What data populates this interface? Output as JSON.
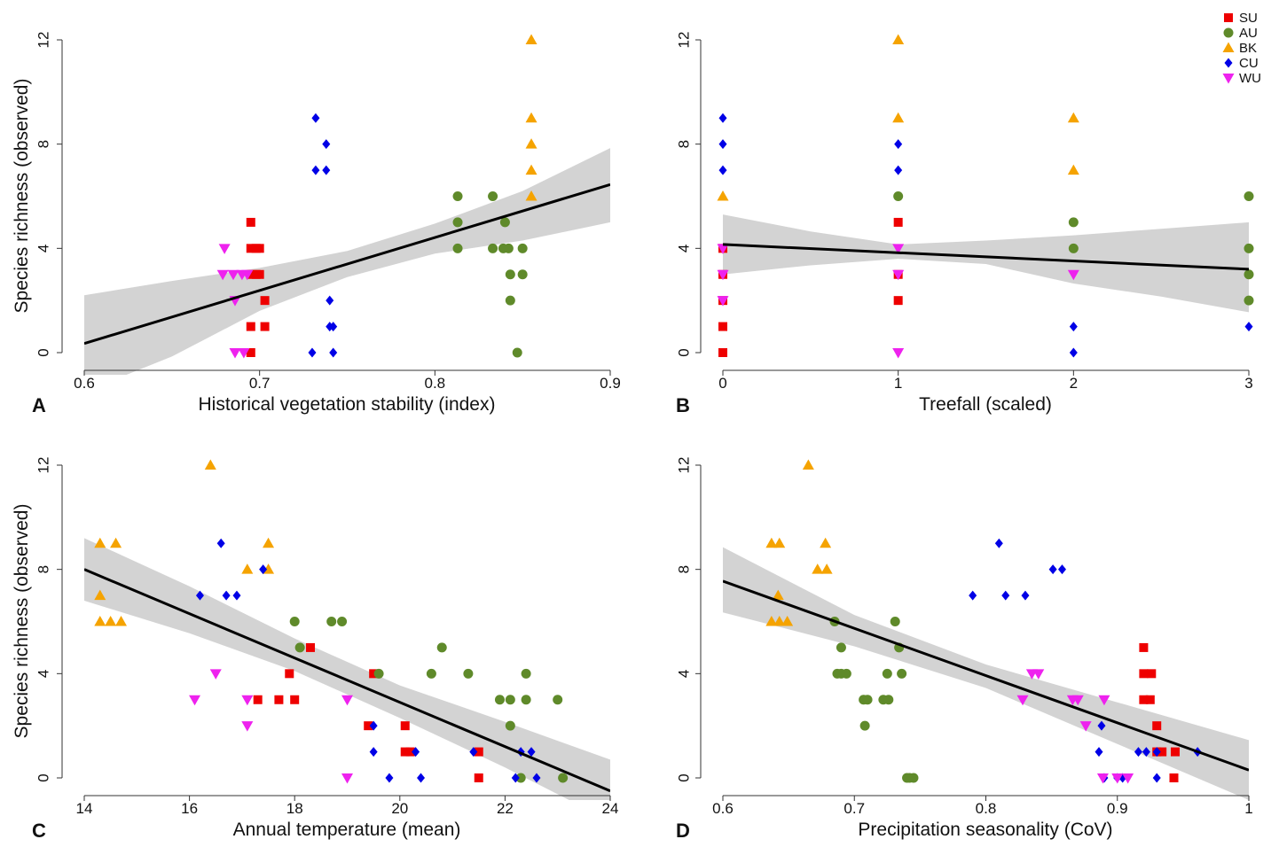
{
  "colors": {
    "SU": "#ee0000",
    "AU": "#5f8a2a",
    "BK": "#f5a300",
    "CU": "#0000e6",
    "WU": "#ee22ee",
    "ci_band": "#d3d3d3",
    "fit_line": "#000000"
  },
  "legend": {
    "placement": "top-right",
    "entries": [
      {
        "key": "SU",
        "label": "SU",
        "marker": "square"
      },
      {
        "key": "AU",
        "label": "AU",
        "marker": "circle"
      },
      {
        "key": "BK",
        "label": "BK",
        "marker": "triangle-up"
      },
      {
        "key": "CU",
        "label": "CU",
        "marker": "diamond"
      },
      {
        "key": "WU",
        "label": "WU",
        "marker": "triangle-down"
      }
    ]
  },
  "chart_data": [
    {
      "panel": "A",
      "type": "scatter",
      "xlabel": "Historical vegetation stability (index)",
      "ylabel": "Species richness (observed)",
      "xlim": [
        0.6,
        0.9
      ],
      "ylim": [
        0,
        12
      ],
      "xticks": [
        0.6,
        0.7,
        0.8,
        0.9
      ],
      "xtick_labels": [
        "0.6",
        "0.7",
        "0.8",
        "0.9"
      ],
      "yticks": [
        0,
        4,
        8,
        12
      ],
      "ytick_labels": [
        "0",
        "4",
        "8",
        "12"
      ],
      "fit": {
        "x": [
          0.6,
          0.9
        ],
        "y": [
          0.35,
          6.45
        ]
      },
      "ci": {
        "x": [
          0.6,
          0.65,
          0.7,
          0.75,
          0.8,
          0.85,
          0.9
        ],
        "upper": [
          2.2,
          2.75,
          3.25,
          3.9,
          4.95,
          6.2,
          7.85
        ],
        "lower": [
          -1.5,
          -0.15,
          1.6,
          2.9,
          3.8,
          4.3,
          5.0
        ]
      },
      "series": [
        {
          "key": "SU",
          "points": [
            [
              0.695,
              5
            ],
            [
              0.695,
              4
            ],
            [
              0.698,
              4
            ],
            [
              0.7,
              4
            ],
            [
              0.695,
              3
            ],
            [
              0.698,
              3
            ],
            [
              0.7,
              3
            ],
            [
              0.703,
              2
            ],
            [
              0.695,
              1
            ],
            [
              0.703,
              1
            ],
            [
              0.695,
              0
            ]
          ]
        },
        {
          "key": "AU",
          "points": [
            [
              0.813,
              6
            ],
            [
              0.833,
              6
            ],
            [
              0.813,
              5
            ],
            [
              0.84,
              5
            ],
            [
              0.813,
              4
            ],
            [
              0.833,
              4
            ],
            [
              0.839,
              4
            ],
            [
              0.842,
              4
            ],
            [
              0.85,
              4
            ],
            [
              0.843,
              3
            ],
            [
              0.85,
              3
            ],
            [
              0.843,
              2
            ],
            [
              0.847,
              0
            ]
          ]
        },
        {
          "key": "BK",
          "points": [
            [
              0.855,
              12
            ],
            [
              0.855,
              9
            ],
            [
              0.855,
              8
            ],
            [
              0.855,
              7
            ],
            [
              0.855,
              6
            ]
          ]
        },
        {
          "key": "CU",
          "points": [
            [
              0.732,
              9
            ],
            [
              0.738,
              8
            ],
            [
              0.732,
              7
            ],
            [
              0.738,
              7
            ],
            [
              0.74,
              2
            ],
            [
              0.74,
              1
            ],
            [
              0.742,
              1
            ],
            [
              0.73,
              0
            ],
            [
              0.742,
              0
            ]
          ]
        },
        {
          "key": "WU",
          "points": [
            [
              0.68,
              4
            ],
            [
              0.679,
              3
            ],
            [
              0.685,
              3
            ],
            [
              0.69,
              3
            ],
            [
              0.693,
              3
            ],
            [
              0.686,
              2
            ],
            [
              0.686,
              0
            ],
            [
              0.691,
              0
            ]
          ]
        }
      ]
    },
    {
      "panel": "B",
      "type": "scatter",
      "xlabel": "Treefall (scaled)",
      "ylabel": "",
      "xlim": [
        0,
        3
      ],
      "ylim": [
        0,
        12
      ],
      "xticks": [
        0,
        1,
        2,
        3
      ],
      "xtick_labels": [
        "0",
        "1",
        "2",
        "3"
      ],
      "yticks": [
        0,
        4,
        8,
        12
      ],
      "ytick_labels": [
        "0",
        "4",
        "8",
        "12"
      ],
      "fit": {
        "x": [
          0,
          3
        ],
        "y": [
          4.15,
          3.2
        ]
      },
      "ci": {
        "x": [
          0,
          0.5,
          1,
          1.5,
          2,
          2.5,
          3
        ],
        "upper": [
          5.3,
          4.65,
          4.15,
          4.3,
          4.5,
          4.75,
          5.0
        ],
        "lower": [
          3.0,
          3.35,
          3.6,
          3.4,
          2.65,
          2.15,
          1.55
        ]
      },
      "series": [
        {
          "key": "SU",
          "points": [
            [
              0,
              4
            ],
            [
              0,
              3
            ],
            [
              0,
              2
            ],
            [
              0,
              1
            ],
            [
              0,
              0
            ],
            [
              1,
              5
            ],
            [
              1,
              3
            ],
            [
              1,
              2
            ]
          ]
        },
        {
          "key": "AU",
          "points": [
            [
              1,
              6
            ],
            [
              2,
              5
            ],
            [
              2,
              4
            ],
            [
              3,
              6
            ],
            [
              3,
              4
            ],
            [
              3,
              3
            ],
            [
              3,
              2
            ]
          ]
        },
        {
          "key": "BK",
          "points": [
            [
              0,
              6
            ],
            [
              1,
              12
            ],
            [
              1,
              9
            ],
            [
              2,
              9
            ],
            [
              2,
              7
            ]
          ]
        },
        {
          "key": "CU",
          "points": [
            [
              0,
              9
            ],
            [
              0,
              8
            ],
            [
              0,
              7
            ],
            [
              1,
              8
            ],
            [
              1,
              7
            ],
            [
              2,
              1
            ],
            [
              2,
              0
            ],
            [
              3,
              1
            ]
          ]
        },
        {
          "key": "WU",
          "points": [
            [
              0,
              4
            ],
            [
              0,
              3
            ],
            [
              0,
              2
            ],
            [
              1,
              4
            ],
            [
              1,
              3
            ],
            [
              1,
              0
            ],
            [
              2,
              3
            ]
          ]
        }
      ]
    },
    {
      "panel": "C",
      "type": "scatter",
      "xlabel": "Annual temperature (mean)",
      "ylabel": "Species richness (observed)",
      "xlim": [
        14,
        24
      ],
      "ylim": [
        0,
        12
      ],
      "xticks": [
        14,
        16,
        18,
        20,
        22,
        24
      ],
      "xtick_labels": [
        "14",
        "16",
        "18",
        "20",
        "22",
        "24"
      ],
      "yticks": [
        0,
        4,
        8,
        12
      ],
      "ytick_labels": [
        "0",
        "4",
        "8",
        "12"
      ],
      "fit": {
        "x": [
          14,
          24
        ],
        "y": [
          8.0,
          -0.5
        ]
      },
      "ci": {
        "x": [
          14,
          16,
          18,
          20,
          22,
          24
        ],
        "upper": [
          9.2,
          7.35,
          5.35,
          3.55,
          2.15,
          0.7
        ],
        "lower": [
          6.8,
          5.55,
          4.1,
          2.3,
          0.4,
          -1.65
        ]
      },
      "series": [
        {
          "key": "SU",
          "points": [
            [
              18.3,
              5
            ],
            [
              17.9,
              4
            ],
            [
              19.5,
              4
            ],
            [
              17.3,
              3
            ],
            [
              17.7,
              3
            ],
            [
              18.0,
              3
            ],
            [
              19.4,
              2
            ],
            [
              20.1,
              2
            ],
            [
              20.1,
              1
            ],
            [
              20.2,
              1
            ],
            [
              21.5,
              1
            ],
            [
              21.5,
              0
            ]
          ]
        },
        {
          "key": "AU",
          "points": [
            [
              18.0,
              6
            ],
            [
              18.7,
              6
            ],
            [
              18.9,
              6
            ],
            [
              18.1,
              5
            ],
            [
              20.8,
              5
            ],
            [
              19.6,
              4
            ],
            [
              20.6,
              4
            ],
            [
              21.3,
              4
            ],
            [
              22.4,
              4
            ],
            [
              21.9,
              3
            ],
            [
              22.1,
              3
            ],
            [
              22.4,
              3
            ],
            [
              23.0,
              3
            ],
            [
              22.1,
              2
            ],
            [
              22.3,
              0
            ],
            [
              23.1,
              0
            ]
          ]
        },
        {
          "key": "BK",
          "points": [
            [
              16.4,
              12
            ],
            [
              14.3,
              9
            ],
            [
              14.6,
              9
            ],
            [
              17.5,
              9
            ],
            [
              17.1,
              8
            ],
            [
              17.5,
              8
            ],
            [
              14.3,
              7
            ],
            [
              14.3,
              6
            ],
            [
              14.5,
              6
            ],
            [
              14.7,
              6
            ]
          ]
        },
        {
          "key": "CU",
          "points": [
            [
              16.6,
              9
            ],
            [
              17.4,
              8
            ],
            [
              16.2,
              7
            ],
            [
              16.7,
              7
            ],
            [
              16.9,
              7
            ],
            [
              19.5,
              2
            ],
            [
              19.5,
              1
            ],
            [
              20.3,
              1
            ],
            [
              21.4,
              1
            ],
            [
              22.3,
              1
            ],
            [
              22.5,
              1
            ],
            [
              19.8,
              0
            ],
            [
              20.4,
              0
            ],
            [
              22.2,
              0
            ],
            [
              22.6,
              0
            ]
          ]
        },
        {
          "key": "WU",
          "points": [
            [
              16.5,
              4
            ],
            [
              16.1,
              3
            ],
            [
              17.1,
              3
            ],
            [
              19.0,
              3
            ],
            [
              17.1,
              2
            ],
            [
              19.0,
              0
            ]
          ]
        }
      ]
    },
    {
      "panel": "D",
      "type": "scatter",
      "xlabel": "Precipitation seasonality (CoV)",
      "ylabel": "",
      "xlim": [
        0.6,
        1.0
      ],
      "ylim": [
        0,
        12
      ],
      "xticks": [
        0.6,
        0.7,
        0.8,
        0.9,
        1.0
      ],
      "xtick_labels": [
        "0.6",
        "0.7",
        "0.8",
        "0.9",
        "1"
      ],
      "yticks": [
        0,
        4,
        8,
        12
      ],
      "ytick_labels": [
        "0",
        "4",
        "8",
        "12"
      ],
      "fit": {
        "x": [
          0.6,
          1.0
        ],
        "y": [
          7.55,
          0.3
        ]
      },
      "ci": {
        "x": [
          0.6,
          0.7,
          0.8,
          0.9,
          1.0
        ],
        "upper": [
          8.85,
          6.25,
          4.35,
          2.9,
          1.45
        ],
        "lower": [
          6.35,
          5.05,
          3.45,
          1.3,
          -0.85
        ]
      },
      "series": [
        {
          "key": "SU",
          "points": [
            [
              0.92,
              5
            ],
            [
              0.92,
              4
            ],
            [
              0.926,
              4
            ],
            [
              0.92,
              3
            ],
            [
              0.925,
              3
            ],
            [
              0.93,
              2
            ],
            [
              0.93,
              1
            ],
            [
              0.934,
              1
            ],
            [
              0.944,
              1
            ],
            [
              0.943,
              0
            ]
          ]
        },
        {
          "key": "AU",
          "points": [
            [
              0.685,
              6
            ],
            [
              0.731,
              6
            ],
            [
              0.69,
              5
            ],
            [
              0.734,
              5
            ],
            [
              0.687,
              4
            ],
            [
              0.69,
              4
            ],
            [
              0.694,
              4
            ],
            [
              0.725,
              4
            ],
            [
              0.736,
              4
            ],
            [
              0.707,
              3
            ],
            [
              0.71,
              3
            ],
            [
              0.722,
              3
            ],
            [
              0.726,
              3
            ],
            [
              0.708,
              2
            ],
            [
              0.74,
              0
            ],
            [
              0.742,
              0
            ],
            [
              0.745,
              0
            ]
          ]
        },
        {
          "key": "BK",
          "points": [
            [
              0.665,
              12
            ],
            [
              0.637,
              9
            ],
            [
              0.643,
              9
            ],
            [
              0.678,
              9
            ],
            [
              0.672,
              8
            ],
            [
              0.679,
              8
            ],
            [
              0.642,
              7
            ],
            [
              0.637,
              6
            ],
            [
              0.643,
              6
            ],
            [
              0.649,
              6
            ]
          ]
        },
        {
          "key": "CU",
          "points": [
            [
              0.81,
              9
            ],
            [
              0.851,
              8
            ],
            [
              0.858,
              8
            ],
            [
              0.79,
              7
            ],
            [
              0.815,
              7
            ],
            [
              0.83,
              7
            ],
            [
              0.888,
              2
            ],
            [
              0.886,
              1
            ],
            [
              0.916,
              1
            ],
            [
              0.922,
              1
            ],
            [
              0.93,
              1
            ],
            [
              0.961,
              1
            ],
            [
              0.89,
              0
            ],
            [
              0.9,
              0
            ],
            [
              0.904,
              0
            ],
            [
              0.93,
              0
            ]
          ]
        },
        {
          "key": "WU",
          "points": [
            [
              0.835,
              4
            ],
            [
              0.84,
              4
            ],
            [
              0.828,
              3
            ],
            [
              0.866,
              3
            ],
            [
              0.87,
              3
            ],
            [
              0.89,
              3
            ],
            [
              0.876,
              2
            ],
            [
              0.889,
              0
            ],
            [
              0.9,
              0
            ],
            [
              0.908,
              0
            ]
          ]
        }
      ]
    }
  ]
}
